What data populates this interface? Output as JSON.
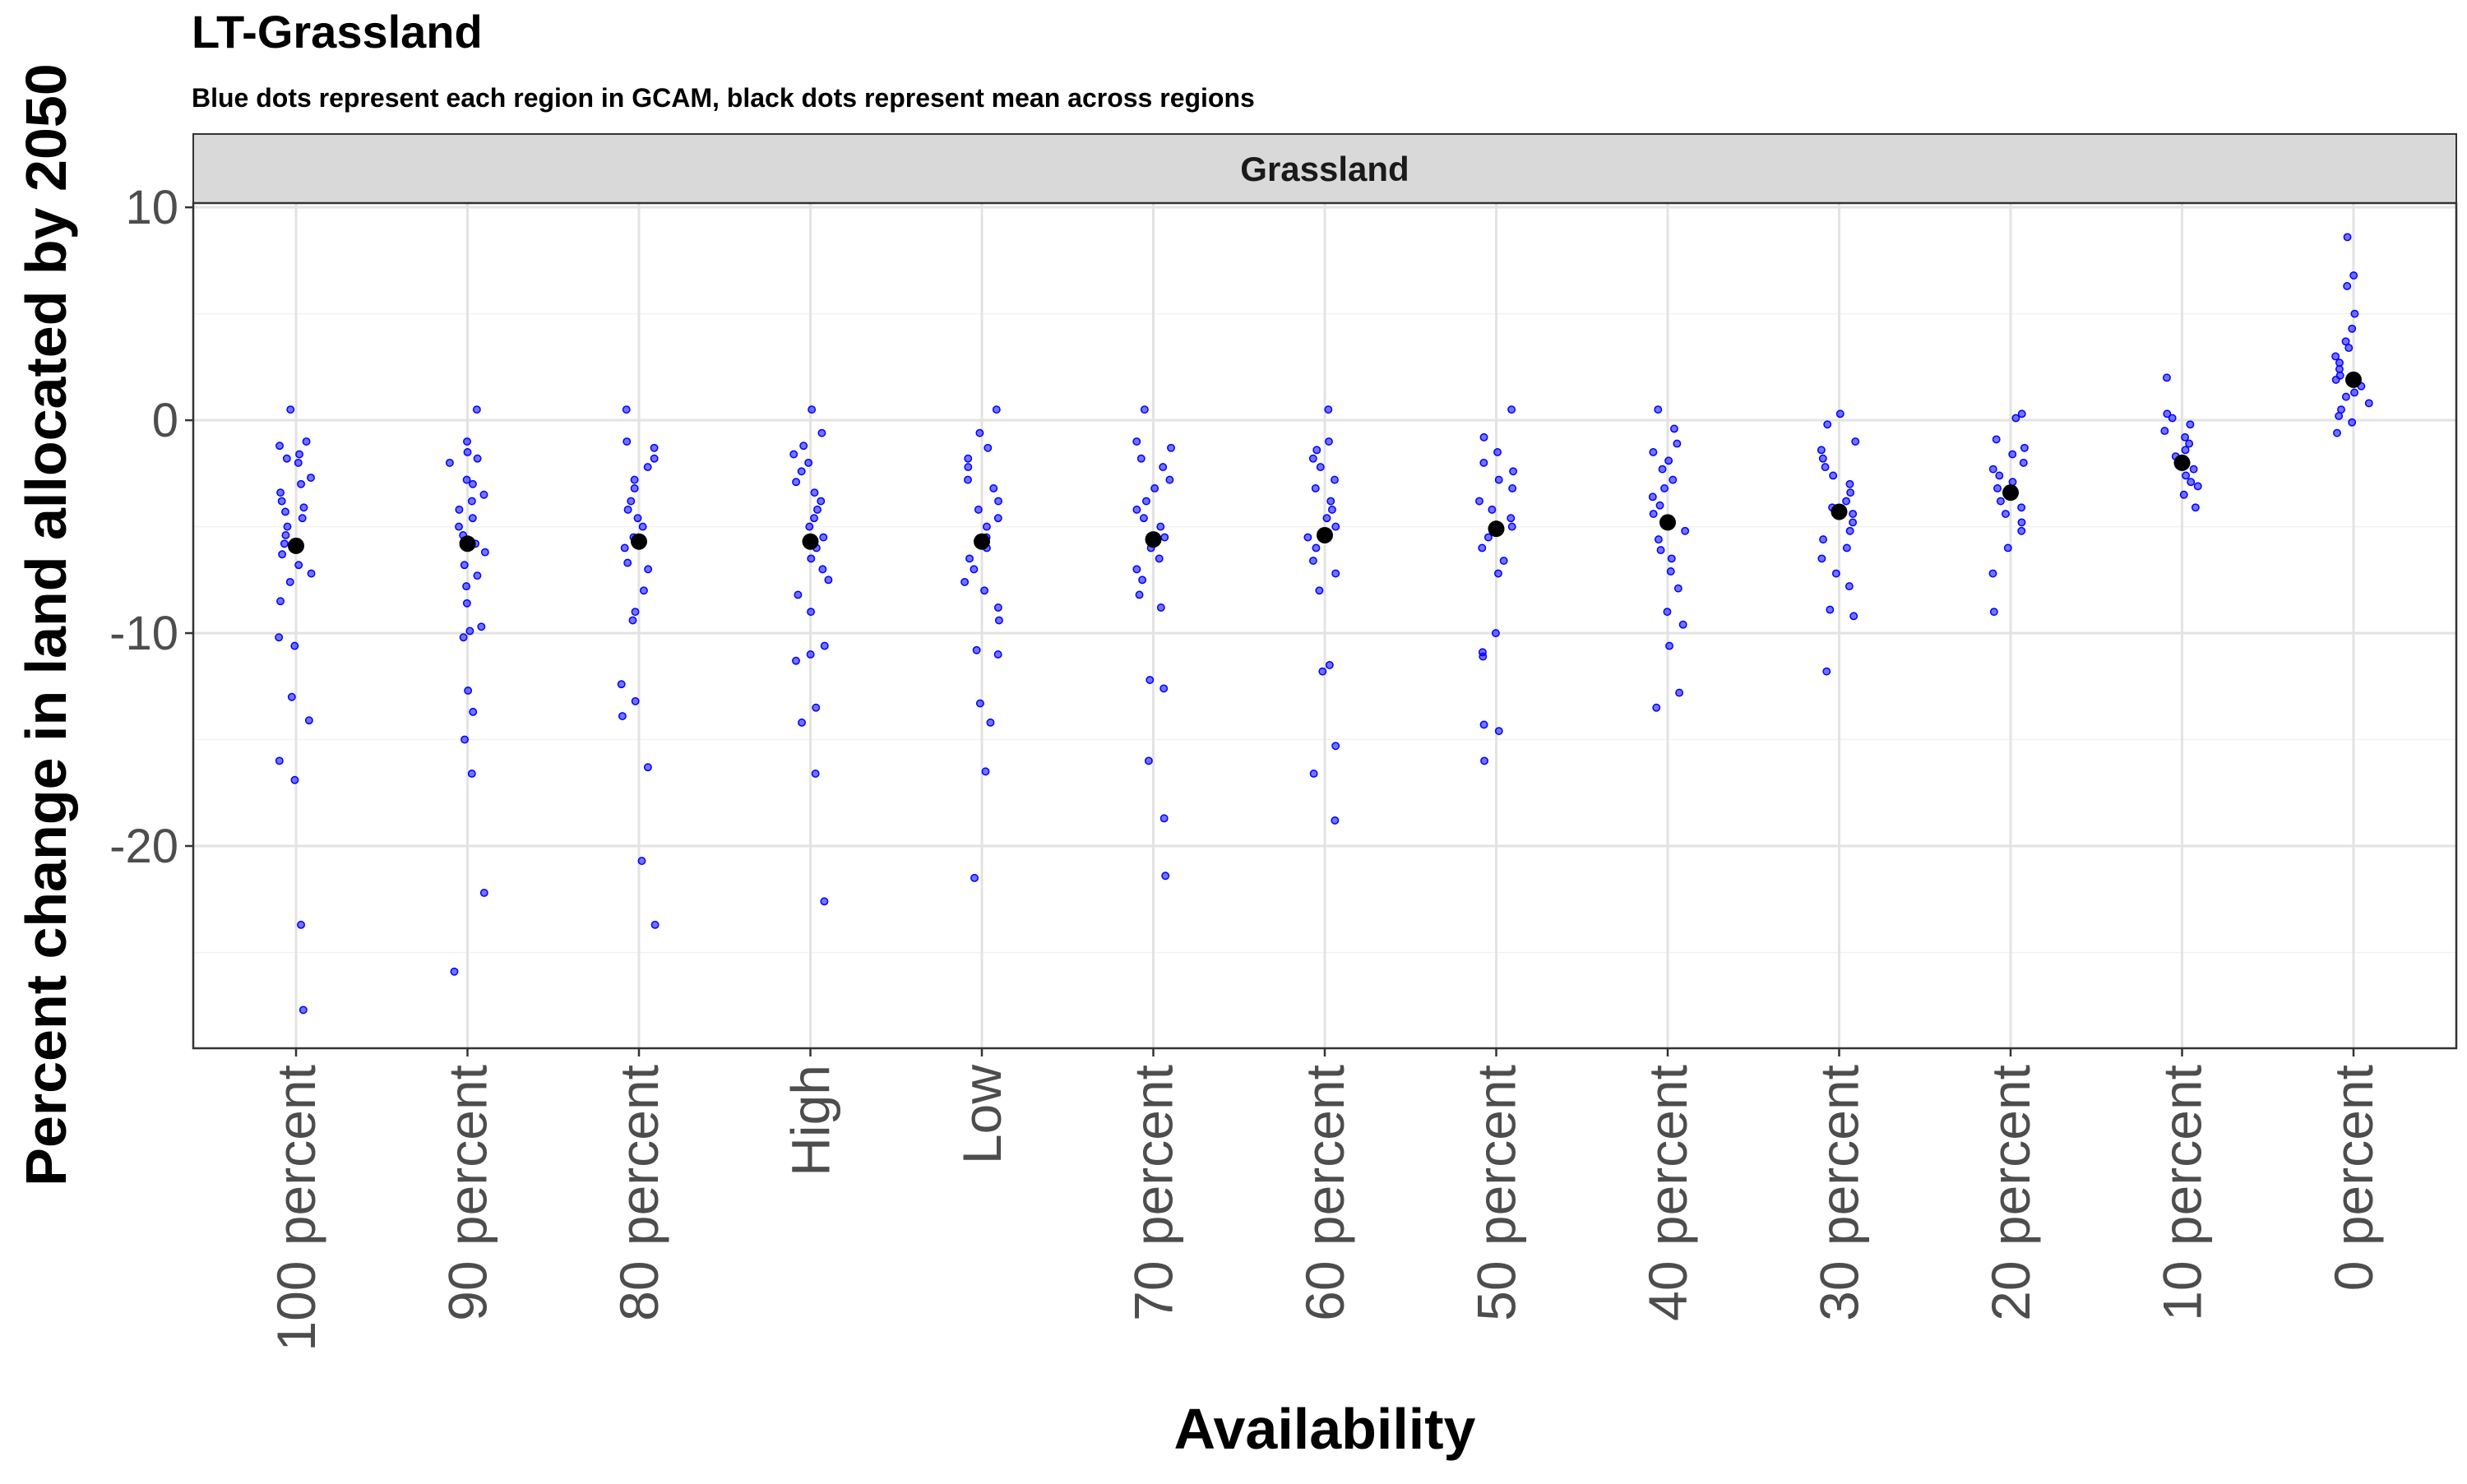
{
  "chart_data": {
    "type": "scatter",
    "title": "LT-Grassland",
    "subtitle": "Blue dots represent each region in GCAM, black dots represent mean across regions",
    "facet_label": "Grassland",
    "xlabel": "Availability",
    "ylabel": "Percent change in land allocated by 2050",
    "ylim": [
      -29.5,
      10.2
    ],
    "yticks": [
      10,
      0,
      -10,
      -20
    ],
    "ytick_labels": [
      "10",
      "0",
      "-10",
      "-20"
    ],
    "grid": true,
    "legend": "none",
    "categories": [
      "100 percent",
      "90 percent",
      "80 percent",
      "High",
      "Low",
      "70 percent",
      "60 percent",
      "50 percent",
      "40 percent",
      "30 percent",
      "20 percent",
      "10 percent",
      "0 percent"
    ],
    "colors": {
      "regions": "#0000ff",
      "mean": "#000000"
    },
    "series": [
      {
        "name": "Regions",
        "points": [
          [
            0.5,
            -1.0,
            -1.2,
            -1.6,
            -1.8,
            -2.0,
            -2.7,
            -3.0,
            -3.4,
            -3.8,
            -4.1,
            -4.3,
            -4.6,
            -5.0,
            -5.4,
            -5.8,
            -6.3,
            -6.8,
            -7.2,
            -7.6,
            -8.5,
            -10.2,
            -10.6,
            -13.0,
            -14.1,
            -16.0,
            -16.9,
            -23.7,
            -27.7
          ],
          [
            0.5,
            -1.0,
            -1.5,
            -1.8,
            -2.0,
            -2.8,
            -3.0,
            -3.5,
            -3.8,
            -4.2,
            -4.6,
            -5.0,
            -5.4,
            -5.8,
            -6.2,
            -6.8,
            -7.3,
            -7.8,
            -8.6,
            -9.7,
            -9.9,
            -10.2,
            -12.7,
            -13.7,
            -15.0,
            -16.6,
            -22.2,
            -25.9
          ],
          [
            0.5,
            -1.0,
            -1.3,
            -1.8,
            -2.2,
            -2.8,
            -3.2,
            -3.8,
            -4.2,
            -4.6,
            -5.0,
            -5.5,
            -6.0,
            -6.7,
            -7.0,
            -8.0,
            -9.0,
            -9.4,
            -12.4,
            -13.2,
            -13.9,
            -16.3,
            -20.7,
            -23.7
          ],
          [
            0.5,
            -0.6,
            -1.2,
            -1.6,
            -2.0,
            -2.4,
            -2.9,
            -3.4,
            -3.8,
            -4.2,
            -4.6,
            -5.0,
            -5.5,
            -6.0,
            -6.5,
            -7.0,
            -7.5,
            -8.2,
            -9.0,
            -10.6,
            -11.0,
            -11.3,
            -13.5,
            -14.2,
            -16.6,
            -22.6
          ],
          [
            0.5,
            -0.6,
            -1.3,
            -1.8,
            -2.2,
            -2.8,
            -3.2,
            -3.8,
            -4.2,
            -4.6,
            -5.0,
            -5.5,
            -6.0,
            -6.5,
            -7.0,
            -7.6,
            -8.0,
            -8.8,
            -9.4,
            -10.8,
            -11.0,
            -13.3,
            -14.2,
            -16.5,
            -21.5
          ],
          [
            0.5,
            -1.0,
            -1.3,
            -1.8,
            -2.2,
            -2.8,
            -3.2,
            -3.8,
            -4.2,
            -4.6,
            -5.0,
            -5.5,
            -6.0,
            -6.5,
            -7.0,
            -7.5,
            -8.2,
            -8.8,
            -12.2,
            -12.6,
            -16.0,
            -18.7,
            -21.4
          ],
          [
            0.5,
            -1.0,
            -1.4,
            -1.8,
            -2.2,
            -2.8,
            -3.2,
            -3.8,
            -4.2,
            -4.6,
            -5.0,
            -5.5,
            -6.0,
            -6.6,
            -7.2,
            -8.0,
            -11.5,
            -11.8,
            -15.3,
            -16.6,
            -18.8
          ],
          [
            0.5,
            -0.8,
            -1.5,
            -2.0,
            -2.4,
            -2.8,
            -3.2,
            -3.8,
            -4.2,
            -4.6,
            -5.0,
            -5.5,
            -6.0,
            -6.6,
            -7.2,
            -10.0,
            -10.9,
            -11.1,
            -14.3,
            -14.6,
            -16.0
          ],
          [
            0.5,
            -0.4,
            -1.1,
            -1.5,
            -1.9,
            -2.3,
            -2.8,
            -3.2,
            -3.6,
            -4.0,
            -4.4,
            -4.8,
            -5.2,
            -5.6,
            -6.1,
            -6.5,
            -7.1,
            -7.9,
            -9.0,
            -9.6,
            -10.6,
            -12.8,
            -13.5
          ],
          [
            0.3,
            -0.2,
            -1.0,
            -1.4,
            -1.8,
            -2.2,
            -2.6,
            -3.0,
            -3.4,
            -3.8,
            -4.1,
            -4.4,
            -4.8,
            -5.2,
            -5.6,
            -6.0,
            -6.5,
            -7.2,
            -7.8,
            -8.9,
            -9.2,
            -11.8
          ],
          [
            0.3,
            0.1,
            -0.9,
            -1.3,
            -1.6,
            -2.0,
            -2.3,
            -2.6,
            -2.9,
            -3.2,
            -3.5,
            -3.8,
            -4.1,
            -4.4,
            -4.8,
            -5.2,
            -6.0,
            -7.2,
            -9.0
          ],
          [
            2.0,
            0.3,
            0.1,
            -0.2,
            -0.5,
            -0.8,
            -1.1,
            -1.4,
            -1.7,
            -2.0,
            -2.3,
            -2.6,
            -2.9,
            -3.1,
            -3.5,
            -4.1
          ],
          [
            8.6,
            6.8,
            6.3,
            5.0,
            4.3,
            3.7,
            3.4,
            3.0,
            2.7,
            2.4,
            2.1,
            1.9,
            1.6,
            1.3,
            1.1,
            0.8,
            0.5,
            0.2,
            -0.1,
            -0.6
          ]
        ]
      },
      {
        "name": "Mean",
        "values": [
          -5.9,
          -5.8,
          -5.7,
          -5.7,
          -5.7,
          -5.6,
          -5.4,
          -5.1,
          -4.8,
          -4.3,
          -3.4,
          -2.0,
          1.9
        ]
      }
    ]
  }
}
